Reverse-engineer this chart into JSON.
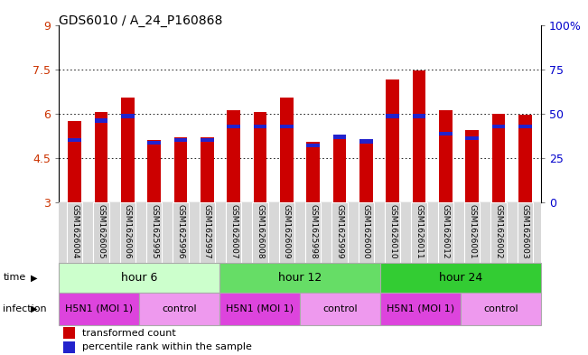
{
  "title": "GDS6010 / A_24_P160868",
  "samples": [
    "GSM1626004",
    "GSM1626005",
    "GSM1626006",
    "GSM1625995",
    "GSM1625996",
    "GSM1625997",
    "GSM1626007",
    "GSM1626008",
    "GSM1626009",
    "GSM1625998",
    "GSM1625999",
    "GSM1626000",
    "GSM1626010",
    "GSM1626011",
    "GSM1626012",
    "GSM1626001",
    "GSM1626002",
    "GSM1626003"
  ],
  "red_values": [
    5.75,
    6.05,
    6.55,
    5.1,
    5.2,
    5.2,
    6.1,
    6.05,
    6.55,
    5.05,
    5.2,
    5.15,
    7.15,
    7.45,
    6.1,
    5.45,
    6.0,
    5.95
  ],
  "blue_values": [
    5.05,
    5.7,
    5.85,
    4.95,
    5.05,
    5.05,
    5.5,
    5.5,
    5.5,
    4.85,
    5.15,
    5.0,
    5.85,
    5.85,
    5.25,
    5.1,
    5.5,
    5.5
  ],
  "ymin": 3.0,
  "ymax": 9.0,
  "yticks_left": [
    3,
    4.5,
    6,
    7.5,
    9
  ],
  "ytick_labels_left": [
    "3",
    "4.5",
    "6",
    "7.5",
    "9"
  ],
  "ytick_labels_right": [
    "0",
    "25",
    "50",
    "75",
    "100%"
  ],
  "bar_color": "#cc0000",
  "blue_color": "#2222cc",
  "background_color": "#ffffff",
  "plot_bg_color": "#ffffff",
  "tick_label_color": "#cc3300",
  "right_tick_color": "#0000cc",
  "bar_width": 0.5,
  "blue_bar_height": 0.13,
  "time_labels": [
    "hour 6",
    "hour 12",
    "hour 24"
  ],
  "time_boundaries": [
    0,
    6,
    12,
    18
  ],
  "time_colors": [
    "#ccffcc",
    "#66dd66",
    "#33cc33"
  ],
  "inf_labels": [
    "H5N1 (MOI 1)",
    "control",
    "H5N1 (MOI 1)",
    "control",
    "H5N1 (MOI 1)",
    "control"
  ],
  "inf_boundaries": [
    0,
    3,
    6,
    9,
    12,
    15,
    18
  ],
  "inf_color_h5n1": "#dd44dd",
  "inf_color_ctrl": "#ee99ee",
  "legend_red_label": "transformed count",
  "legend_blue_label": "percentile rank within the sample"
}
